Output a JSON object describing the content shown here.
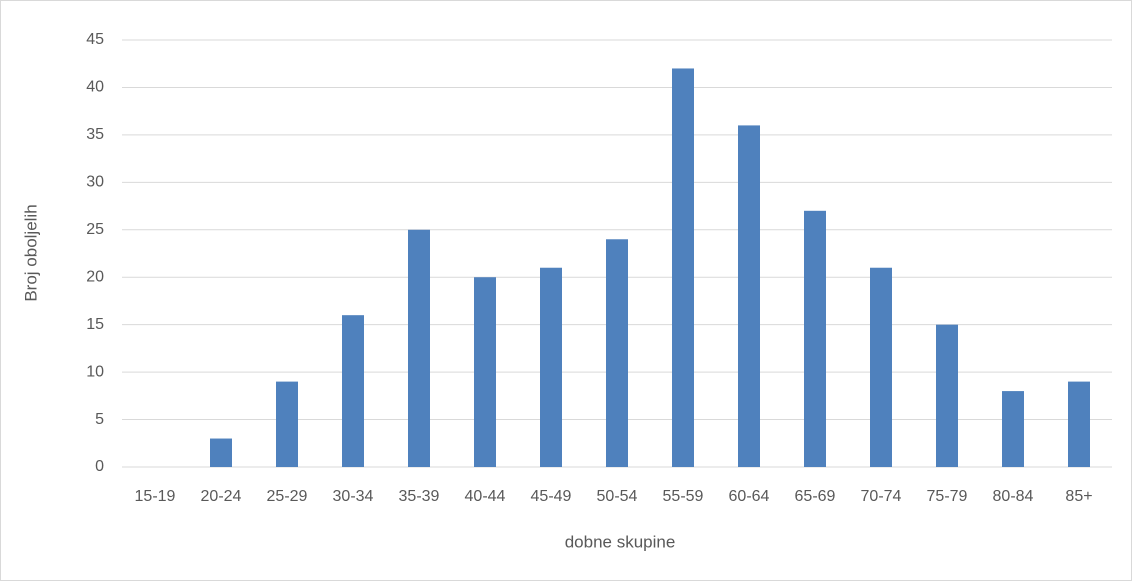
{
  "chart_data": {
    "type": "bar",
    "x_label": "dobne skupine",
    "y_label": "Broj oboljelih",
    "categories": [
      "15-19",
      "20-24",
      "25-29",
      "30-34",
      "35-39",
      "40-44",
      "45-49",
      "50-54",
      "55-59",
      "60-64",
      "65-69",
      "70-74",
      "75-79",
      "80-84",
      "85+"
    ],
    "values": [
      0,
      3,
      9,
      16,
      25,
      20,
      21,
      24,
      42,
      36,
      27,
      21,
      15,
      8,
      9
    ],
    "color": "#4f81bd",
    "ylim": [
      0,
      45
    ],
    "yticks": [
      0,
      5,
      10,
      15,
      20,
      25,
      30,
      35,
      40,
      45
    ],
    "grid": true
  }
}
